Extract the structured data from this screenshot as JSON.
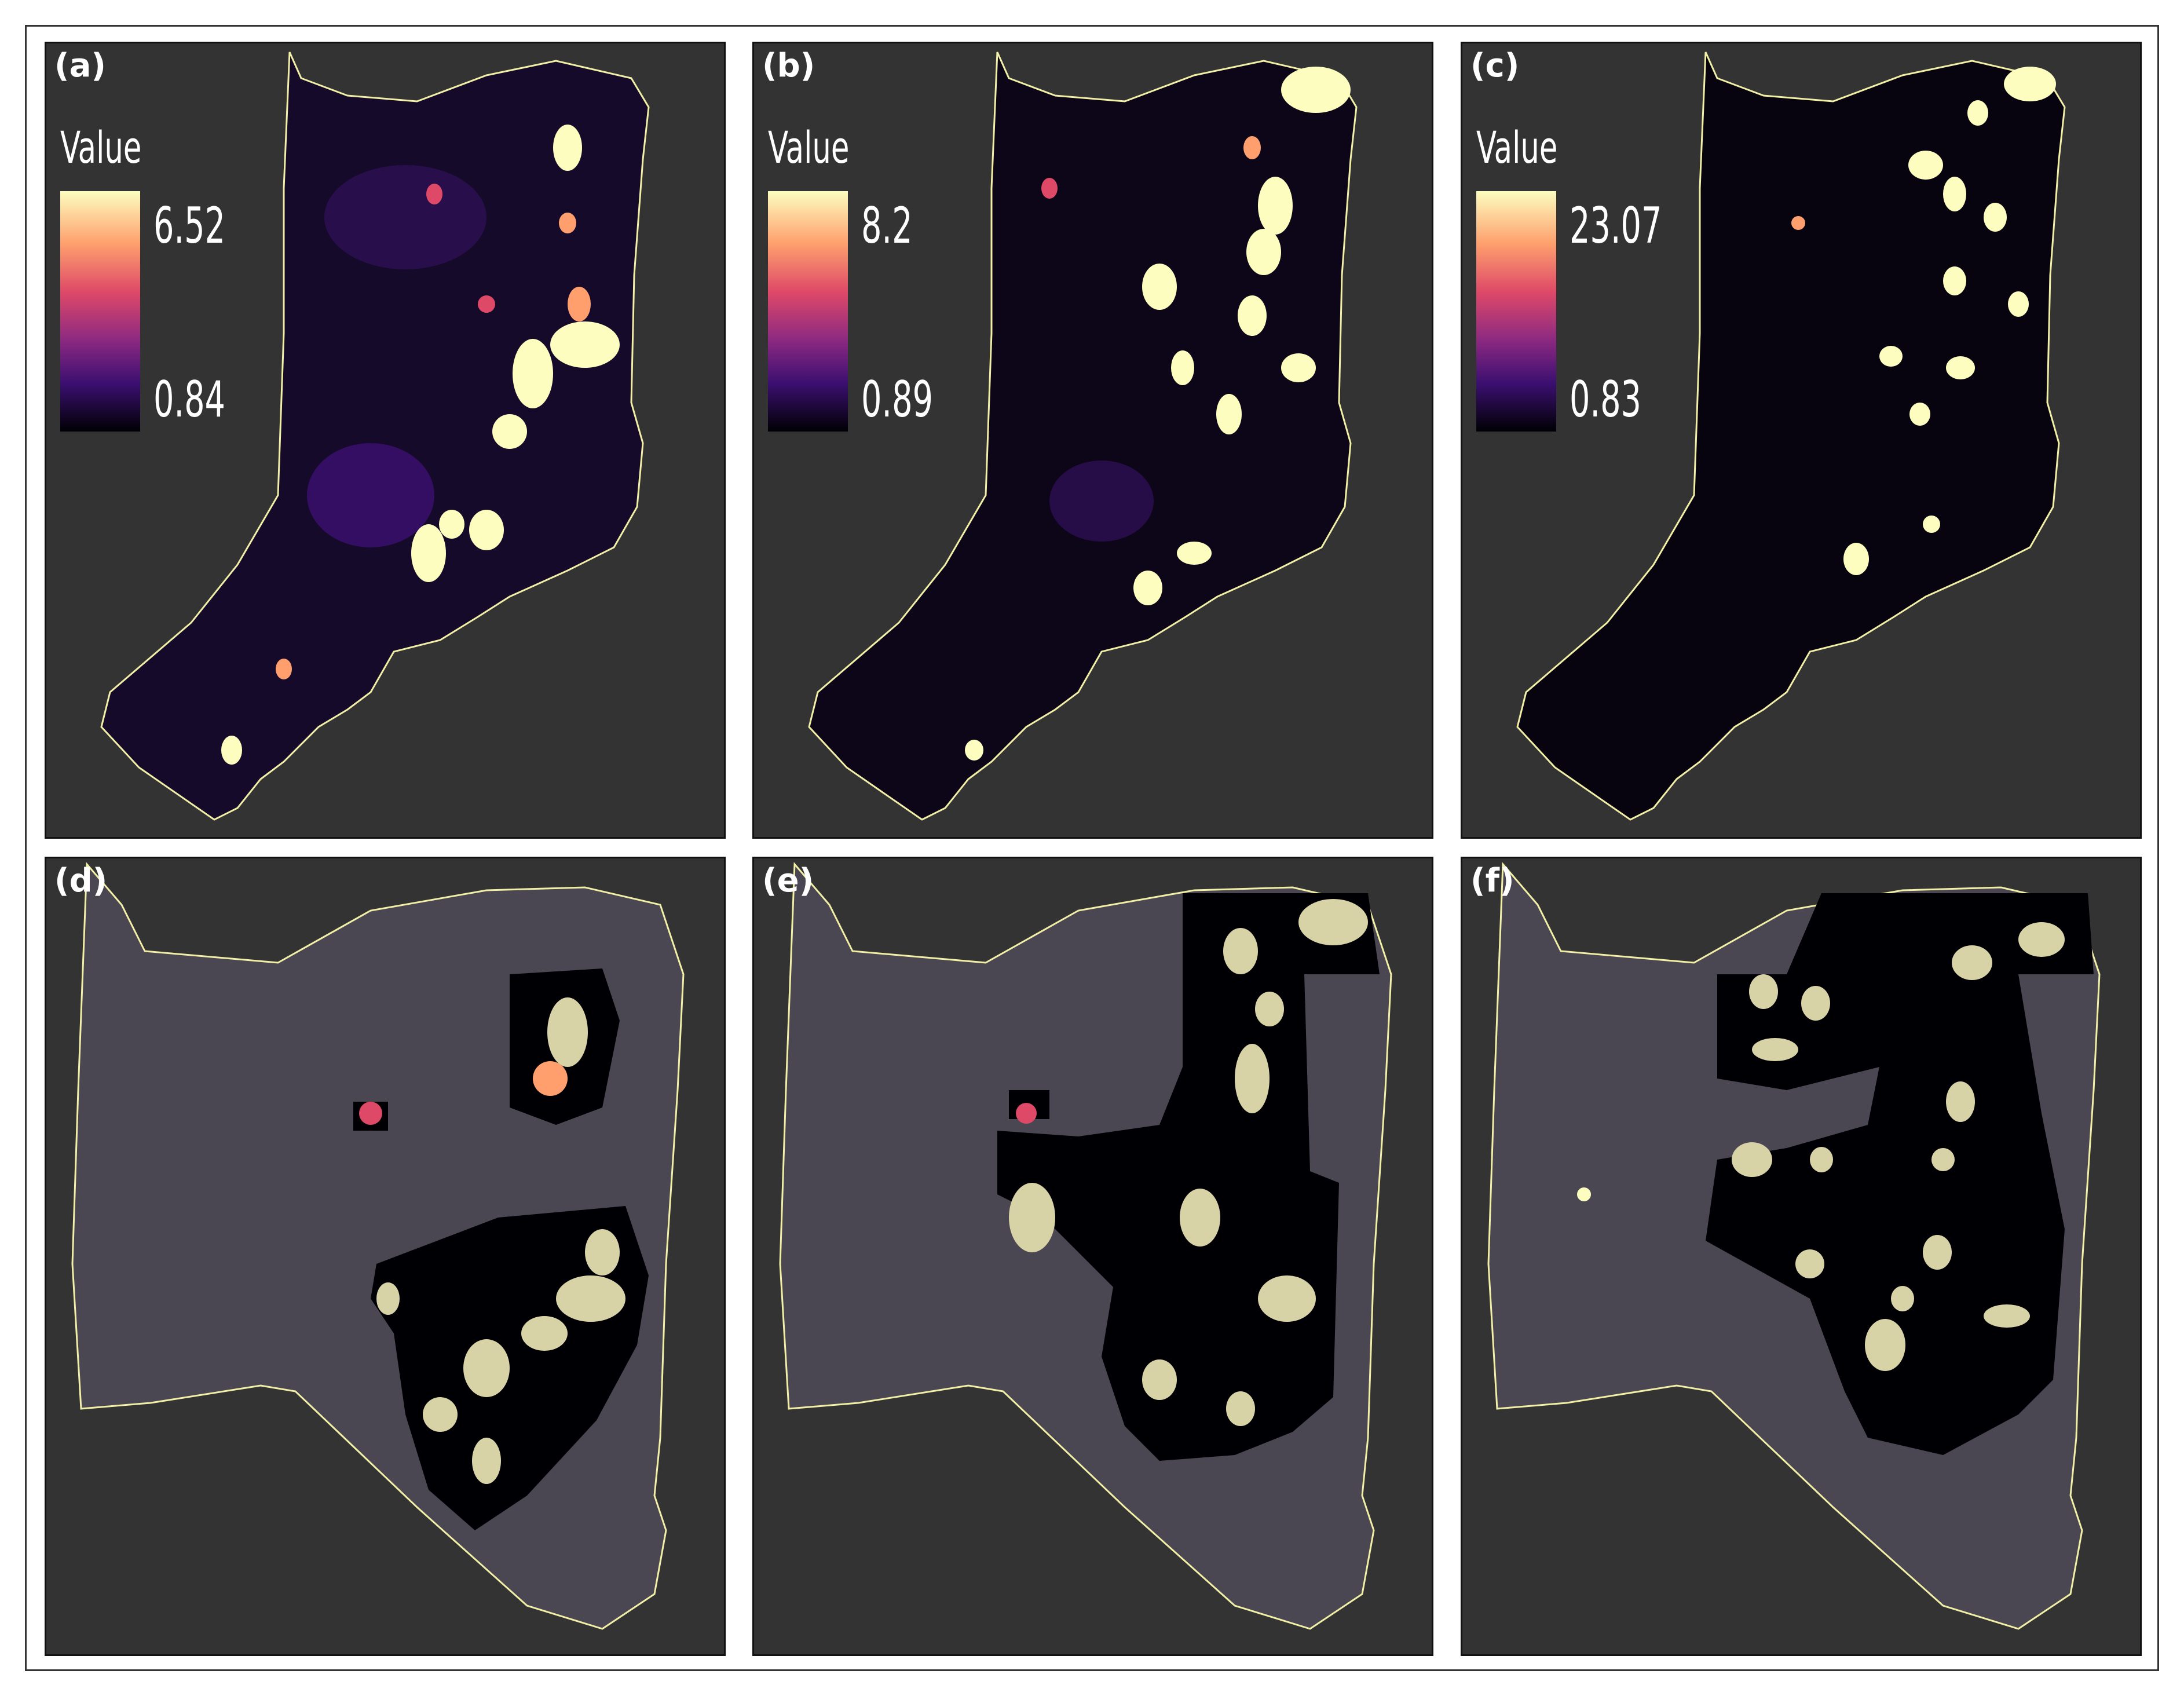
{
  "figure": {
    "panels": [
      {
        "label": "(a)",
        "legend": {
          "title": "Value",
          "max": "6.52",
          "min": "0.84"
        }
      },
      {
        "label": "(b)",
        "legend": {
          "title": "Value",
          "max": "8.2",
          "min": "0.89"
        }
      },
      {
        "label": "(c)",
        "legend": {
          "title": "Value",
          "max": "23.07",
          "min": "0.83"
        }
      },
      {
        "label": "(d)"
      },
      {
        "label": "(e)"
      },
      {
        "label": "(f)"
      }
    ],
    "colormap": [
      "#000004",
      "#3b0f70",
      "#8c2981",
      "#de4968",
      "#fe9f6d",
      "#fcfdbf"
    ],
    "boundary_color": "#f2efa6",
    "background_color": "#333333"
  }
}
